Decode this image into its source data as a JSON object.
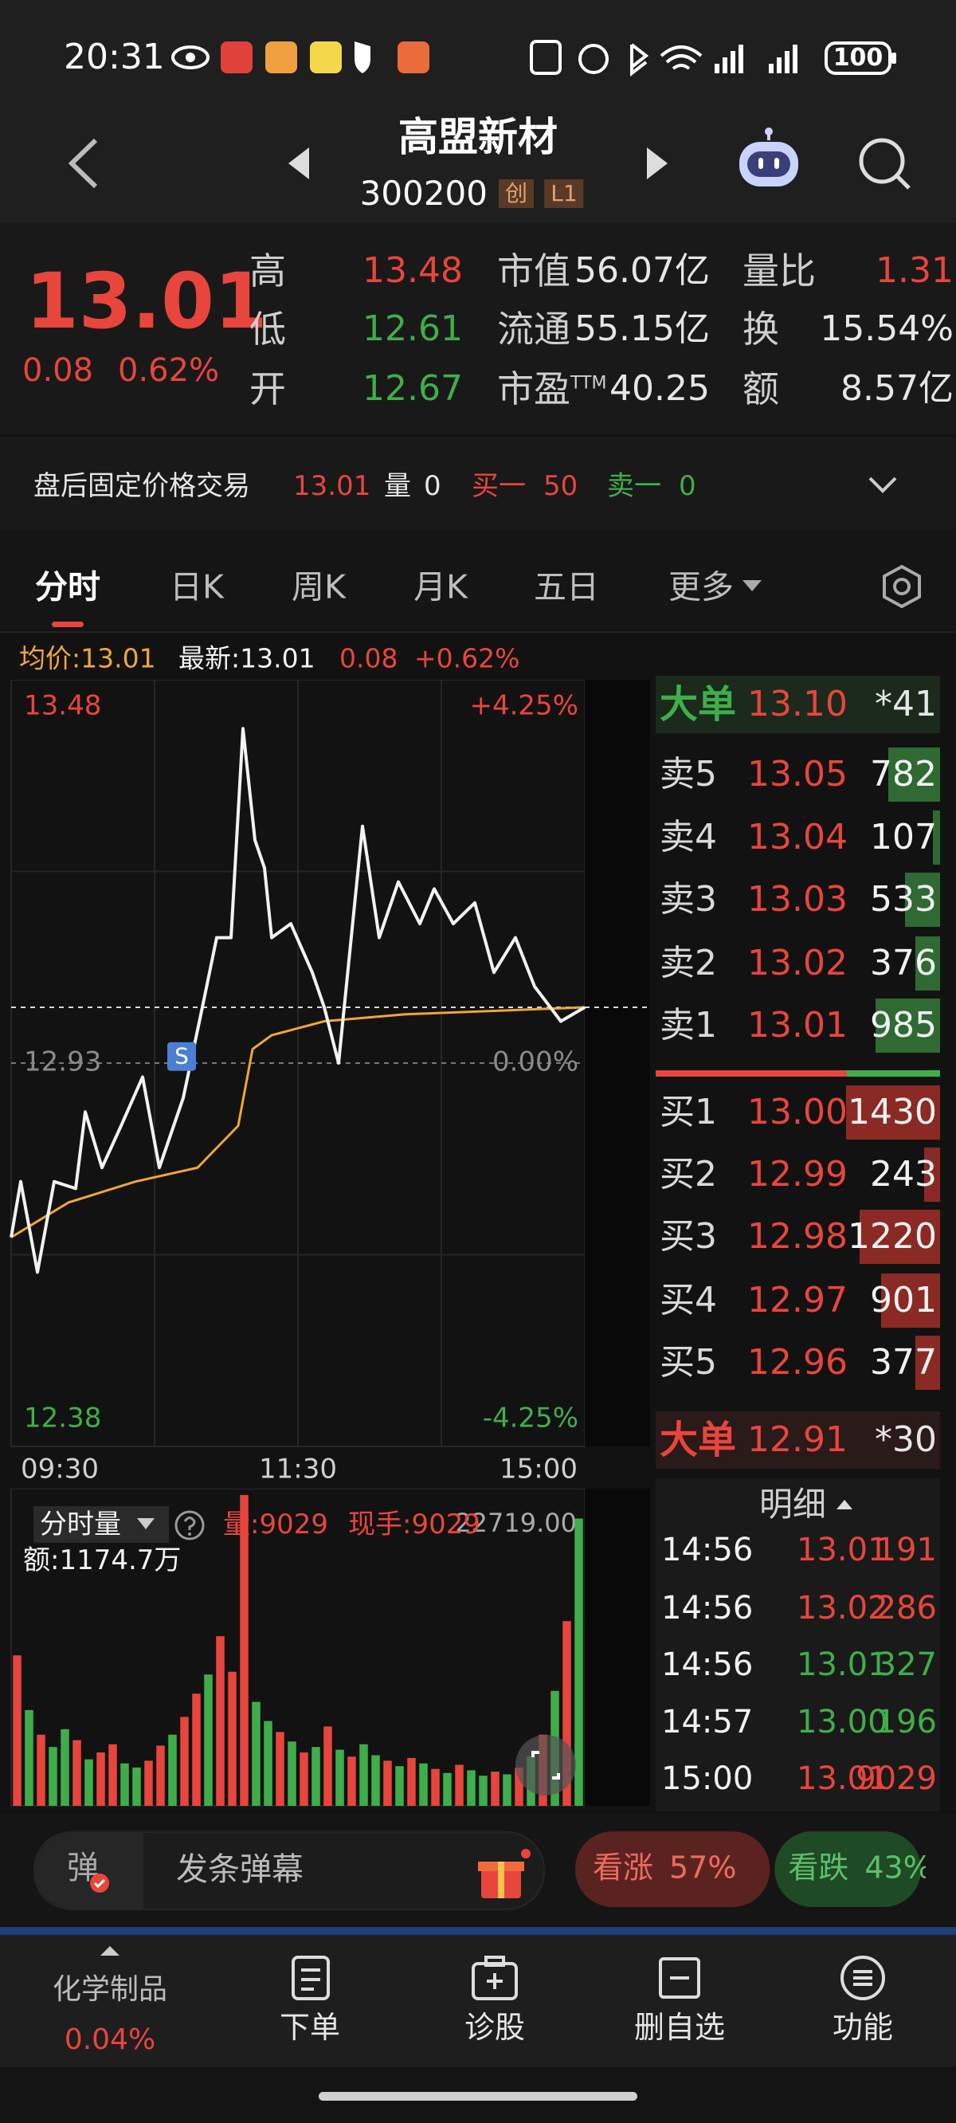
{
  "status_bar": {
    "time": "20:31",
    "battery": "100"
  },
  "header": {
    "name": "高盟新材",
    "code": "300200",
    "board": "创",
    "level": "L1"
  },
  "quote": {
    "price": "13.01",
    "change": "0.08",
    "change_pct": "0.62%",
    "stats": [
      [
        {
          "label": "高",
          "value": "13.48",
          "color": "#e8453c"
        },
        {
          "label": "市值",
          "value": "56.07亿",
          "color": "#e6e6e6"
        },
        {
          "label": "量比",
          "value": "1.31",
          "color": "#e8453c"
        }
      ],
      [
        {
          "label": "低",
          "value": "12.61",
          "color": "#3fae49"
        },
        {
          "label": "流通",
          "value": "55.15亿",
          "color": "#e6e6e6"
        },
        {
          "label": "换",
          "value": "15.54%",
          "color": "#e6e6e6"
        }
      ],
      [
        {
          "label": "开",
          "value": "12.67",
          "color": "#3fae49"
        },
        {
          "label": "市盈",
          "sup": "TTM",
          "value": "40.25",
          "color": "#e6e6e6"
        },
        {
          "label": "额",
          "value": "8.57亿",
          "color": "#e6e6e6"
        }
      ]
    ]
  },
  "after_hours": {
    "title": "盘后固定价格交易",
    "price": "13.01",
    "volume": {
      "label": "量",
      "value": "0"
    },
    "bid1": {
      "label": "买一",
      "value": "50"
    },
    "ask1": {
      "label": "卖一",
      "value": "0"
    }
  },
  "tabs": [
    "分时",
    "日K",
    "周K",
    "月K",
    "五日",
    "更多"
  ],
  "info": {
    "avg": "均价:13.01",
    "latest": "最新:13.01",
    "change": "0.08",
    "change_pct": "+0.62%"
  },
  "intraday": {
    "xlim": [
      0,
      240
    ],
    "xticks": [
      {
        "value": 0,
        "label": "09:30"
      },
      {
        "value": 120,
        "label": "11:30"
      },
      {
        "value": 240,
        "label": "15:00"
      }
    ],
    "ylim": [
      12.38,
      13.48
    ],
    "yticks": [
      13.48,
      12.93,
      12.38
    ],
    "ytick_colors": [
      "#e8453c",
      "#8a8a8a",
      "#3fae49"
    ],
    "pct_ticks": [
      {
        "value": 13.48,
        "label": "+4.25%"
      },
      {
        "value": 12.93,
        "label": "0.00%"
      },
      {
        "value": 12.38,
        "label": "-4.25%"
      }
    ],
    "signal": "S",
    "price_color": "#f2f2f2",
    "avg_color": "#f0a53a",
    "x": [
      0,
      4,
      11,
      18,
      27,
      31,
      38,
      46,
      55,
      62,
      68,
      72,
      80,
      86,
      92,
      97,
      102,
      106,
      109,
      117,
      126,
      131,
      137,
      142,
      147,
      154,
      162,
      171,
      177,
      185,
      194,
      202,
      211,
      219,
      230,
      240
    ],
    "price": [
      12.68,
      12.76,
      12.63,
      12.76,
      12.75,
      12.86,
      12.78,
      12.84,
      12.91,
      12.78,
      12.84,
      12.88,
      13.01,
      13.11,
      13.11,
      13.41,
      13.25,
      13.21,
      13.11,
      13.13,
      13.06,
      13.01,
      12.93,
      13.1,
      13.27,
      13.11,
      13.19,
      13.13,
      13.18,
      13.13,
      13.16,
      13.06,
      13.11,
      13.04,
      12.99,
      13.01
    ],
    "avg_x": [
      0,
      24,
      52,
      78,
      95,
      101,
      109,
      131,
      165,
      240
    ],
    "avg": [
      12.68,
      12.73,
      12.76,
      12.78,
      12.84,
      12.95,
      12.97,
      12.99,
      13.0,
      13.01
    ]
  },
  "volume": {
    "title": "分时量",
    "last": "量:9029",
    "hand": "现手:9029",
    "amount": "额:1174.7万",
    "ylim": [
      0,
      22719
    ],
    "yticks": [
      {
        "value": 22719,
        "label": "22719.00"
      }
    ],
    "values": [
      11000,
      7000,
      5200,
      4300,
      5600,
      4800,
      3400,
      3900,
      4500,
      3100,
      2800,
      3300,
      4400,
      5200,
      6500,
      8200,
      9600,
      12400,
      9800,
      22719,
      7600,
      6200,
      5400,
      4700,
      3900,
      4300,
      5800,
      4100,
      3600,
      4500,
      3700,
      3300,
      2900,
      3500,
      3100,
      2700,
      2400,
      3000,
      2600,
      2200,
      2500,
      2300,
      2800,
      3600,
      5200,
      8400,
      13500,
      21000
    ],
    "colors": [
      "#e8453c",
      "#3fae49",
      "#e8453c",
      "#3fae49",
      "#3fae49",
      "#e8453c",
      "#3fae49",
      "#e8453c",
      "#e8453c",
      "#3fae49",
      "#3fae49",
      "#e8453c",
      "#e8453c",
      "#3fae49",
      "#e8453c",
      "#e8453c",
      "#3fae49",
      "#e8453c",
      "#e8453c",
      "#e8453c",
      "#3fae49",
      "#3fae49",
      "#e8453c",
      "#3fae49",
      "#e8453c",
      "#3fae49",
      "#e8453c",
      "#3fae49",
      "#e8453c",
      "#3fae49",
      "#3fae49",
      "#e8453c",
      "#3fae49",
      "#e8453c",
      "#3fae49",
      "#e8453c",
      "#3fae49",
      "#e8453c",
      "#3fae49",
      "#3fae49",
      "#e8453c",
      "#3fae49",
      "#e8453c",
      "#3fae49",
      "#e8453c",
      "#3fae49",
      "#e8453c",
      "#3fae49"
    ]
  },
  "order_book": {
    "big_ask": {
      "label": "大单",
      "price": "13.10",
      "count": "*41"
    },
    "asks": [
      {
        "label": "卖5",
        "price": "13.05",
        "volume": 782
      },
      {
        "label": "卖4",
        "price": "13.04",
        "volume": 107
      },
      {
        "label": "卖3",
        "price": "13.03",
        "volume": 533
      },
      {
        "label": "卖2",
        "price": "13.02",
        "volume": 376
      },
      {
        "label": "卖1",
        "price": "13.01",
        "volume": 985
      }
    ],
    "bids": [
      {
        "label": "买1",
        "price": "13.00",
        "volume": 1430
      },
      {
        "label": "买2",
        "price": "12.99",
        "volume": 243
      },
      {
        "label": "买3",
        "price": "12.98",
        "volume": 1220
      },
      {
        "label": "买4",
        "price": "12.97",
        "volume": 901
      },
      {
        "label": "买5",
        "price": "12.96",
        "volume": 377
      }
    ],
    "big_bid": {
      "label": "大单",
      "price": "12.91",
      "count": "*30"
    }
  },
  "ticks": {
    "title": "明细",
    "rows": [
      {
        "time": "14:56",
        "price": "13.01",
        "volume": 191,
        "color": "#e8453c"
      },
      {
        "time": "14:56",
        "price": "13.02",
        "volume": 286,
        "color": "#e8453c"
      },
      {
        "time": "14:56",
        "price": "13.01",
        "volume": 327,
        "color": "#3fae49"
      },
      {
        "time": "14:57",
        "price": "13.00",
        "volume": 196,
        "color": "#3fae49"
      },
      {
        "time": "15:00",
        "price": "13.01",
        "volume": 9029,
        "color": "#e8453c"
      }
    ]
  },
  "danmaku": {
    "badge": "弹",
    "placeholder": "发条弹幕"
  },
  "sentiment": {
    "bull": {
      "label": "看涨",
      "value": 57,
      "value_label": "57%"
    },
    "bear": {
      "label": "看跌",
      "value": 43,
      "value_label": "43%"
    }
  },
  "nav": {
    "sector": {
      "name": "化学制品",
      "change": "0.04%"
    },
    "items": [
      "下单",
      "诊股",
      "删自选",
      "功能"
    ]
  }
}
